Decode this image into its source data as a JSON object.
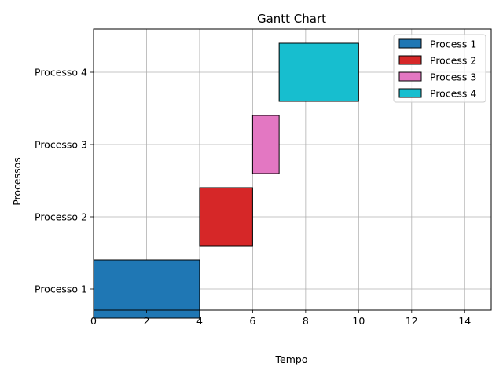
{
  "chart_data": {
    "type": "gantt",
    "title": "Gantt Chart",
    "xlabel": "Tempo",
    "ylabel": "Processos",
    "xlim": [
      0,
      15
    ],
    "xticks": [
      0,
      2,
      4,
      6,
      8,
      10,
      12,
      14
    ],
    "categories": [
      "Processo 1",
      "Processo 2",
      "Processo 3",
      "Processo 4"
    ],
    "grid": true,
    "legend_position": "top-right",
    "series": [
      {
        "name": "Process 1",
        "category": "Processo 1",
        "start": 0,
        "end": 4,
        "color": "#1f77b4"
      },
      {
        "name": "Process 2",
        "category": "Processo 2",
        "start": 4,
        "end": 6,
        "color": "#d62728"
      },
      {
        "name": "Process 3",
        "category": "Processo 3",
        "start": 6,
        "end": 7,
        "color": "#e377c2"
      },
      {
        "name": "Process 4",
        "category": "Processo 4",
        "start": 7,
        "end": 10,
        "color": "#17becf"
      }
    ]
  }
}
